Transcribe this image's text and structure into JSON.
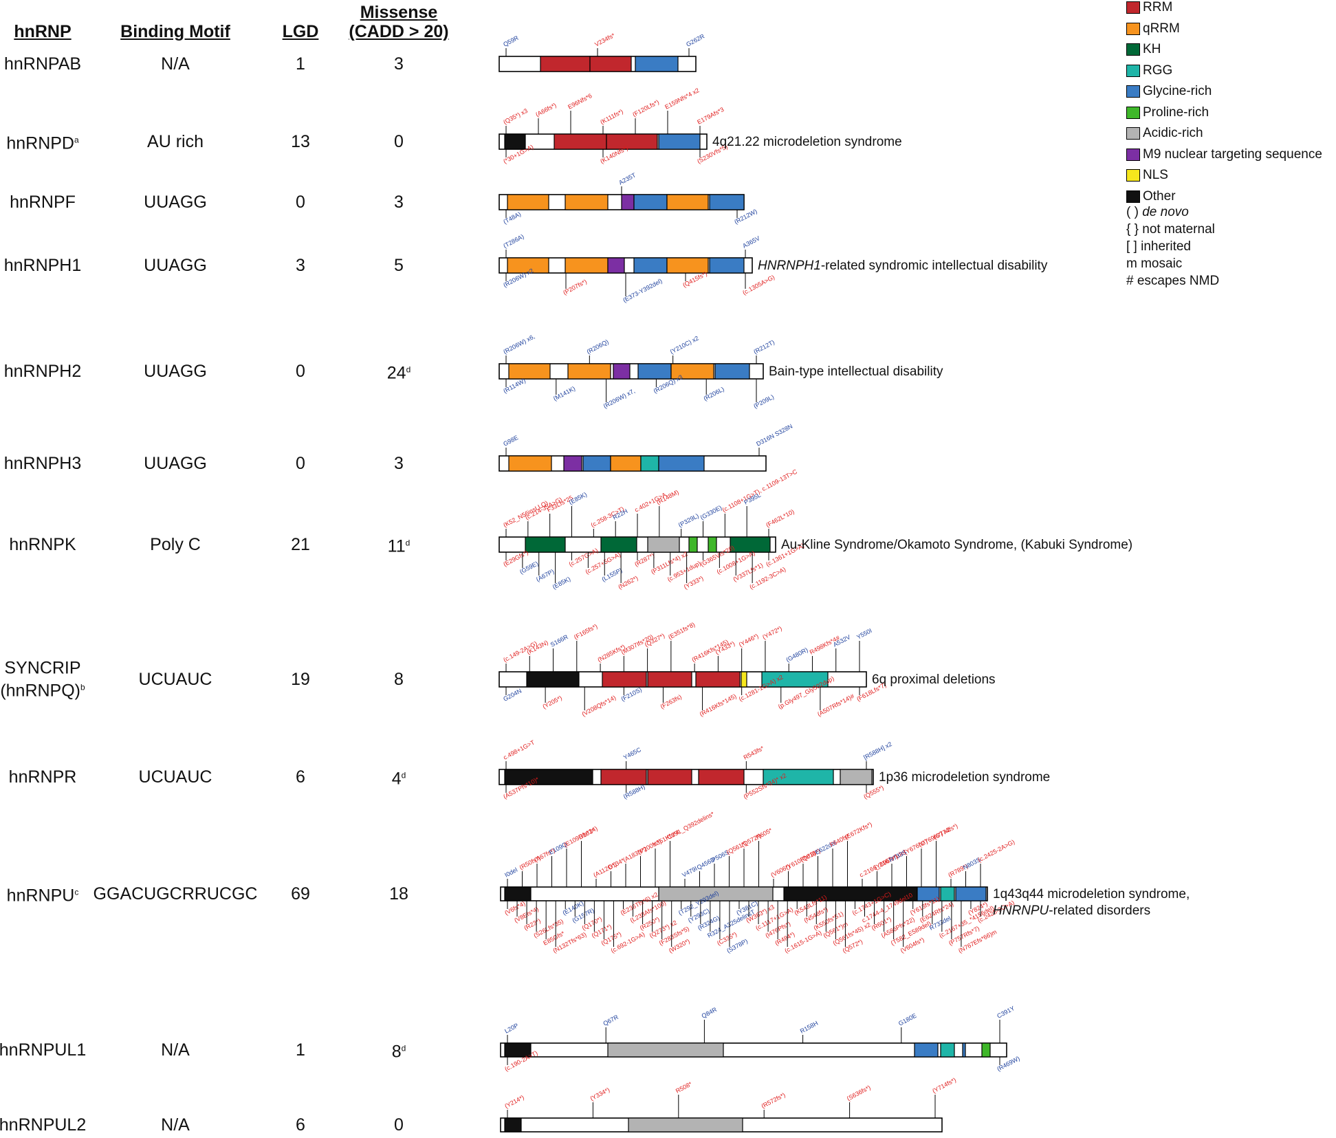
{
  "headers": {
    "hnrnp": "hnRNP",
    "motif": "Binding Motif",
    "lgd": "LGD",
    "missense_1": "Missense",
    "missense_2": "(CADD > 20)"
  },
  "colors": {
    "RRM": "#c1272d",
    "qRRM": "#f7931e",
    "KH": "#006837",
    "RGG": "#1fb5a8",
    "Glycine": "#3a7cc4",
    "Proline": "#3fb72a",
    "Acidic": "#b3b3b3",
    "M9": "#7c2fa3",
    "NLS": "#f6e71d",
    "Other": "#111111",
    "mutation_red": "#e01b1b",
    "mutation_blue": "#1c3f9c"
  },
  "legend": [
    {
      "label": "RRM",
      "color": "#c1272d"
    },
    {
      "label": "qRRM",
      "color": "#f7931e"
    },
    {
      "label": "KH",
      "color": "#006837"
    },
    {
      "label": "RGG",
      "color": "#1fb5a8"
    },
    {
      "label": "Glycine-rich",
      "color": "#3a7cc4"
    },
    {
      "label": "Proline-rich",
      "color": "#3fb72a"
    },
    {
      "label": "Acidic-rich",
      "color": "#b3b3b3"
    },
    {
      "label": "M9 nuclear targeting sequence",
      "color": "#7c2fa3"
    },
    {
      "label": "NLS",
      "color": "#f6e71d"
    },
    {
      "label": "Other",
      "color": "#111111"
    }
  ],
  "legend_notes": [
    "( ) de novo",
    "{ } not maternal",
    "[ ] inherited",
    "m mosaic",
    "# escapes NMD"
  ],
  "rows": [
    {
      "name": "hnRNPAB",
      "sup": "",
      "motif": "N/A",
      "lgd": "1",
      "missense": "3",
      "msup": "",
      "syndrome": ""
    },
    {
      "name": "hnRNPD",
      "sup": "a",
      "motif": "AU rich",
      "lgd": "13",
      "missense": "0",
      "msup": "",
      "syndrome": "4q21.22 microdeletion syndrome"
    },
    {
      "name": "hnRNPF",
      "sup": "",
      "motif": "UUAGG",
      "lgd": "0",
      "missense": "3",
      "msup": "",
      "syndrome": ""
    },
    {
      "name": "hnRNPH1",
      "sup": "",
      "motif": "UUAGG",
      "lgd": "3",
      "missense": "5",
      "msup": "",
      "syndrome": "HNRNPH1-related syndromic intellectual disability"
    },
    {
      "name": "hnRNPH2",
      "sup": "",
      "motif": "UUAGG",
      "lgd": "0",
      "missense": "24",
      "msup": "d",
      "syndrome": "Bain-type intellectual disability"
    },
    {
      "name": "hnRNPH3",
      "sup": "",
      "motif": "UUAGG",
      "lgd": "0",
      "missense": "3",
      "msup": "",
      "syndrome": ""
    },
    {
      "name": "hnRNPK",
      "sup": "",
      "motif": "Poly C",
      "lgd": "21",
      "missense": "11",
      "msup": "d",
      "syndrome": "Au-Kline Syndrome/Okamoto Syndrome, (Kabuki Syndrome)"
    },
    {
      "name": "SYNCRIP",
      "name2": "(hnRNPQ)",
      "sup": "b",
      "motif": "UCUAUC",
      "lgd": "19",
      "missense": "8",
      "msup": "",
      "syndrome": "6q proximal deletions"
    },
    {
      "name": "hnRNPR",
      "sup": "",
      "motif": "UCUAUC",
      "lgd": "6",
      "missense": "4",
      "msup": "d",
      "syndrome": "1p36 microdeletion syndrome"
    },
    {
      "name": "hnRNPU",
      "sup": "c",
      "motif": "GGACUGCRRUCGC",
      "lgd": "69",
      "missense": "18",
      "msup": "",
      "syndrome": "1q43q44 microdeletion syndrome,",
      "syndrome2": "HNRNPU-related disorders"
    },
    {
      "name": "hnRNPUL1",
      "sup": "",
      "motif": "N/A",
      "lgd": "1",
      "missense": "8",
      "msup": "d",
      "syndrome": ""
    },
    {
      "name": "hnRNPUL2",
      "sup": "",
      "motif": "N/A",
      "lgd": "6",
      "missense": "0",
      "msup": "",
      "syndrome": ""
    }
  ],
  "proteins": [
    {
      "domains": [
        [
          "RRM"
        ],
        [
          "RRM"
        ],
        [
          "Glycine"
        ]
      ],
      "above": [
        [
          "Q59R",
          "b"
        ],
        [
          "V234fs*",
          "r"
        ],
        [
          "G262R",
          "b"
        ]
      ],
      "below": []
    },
    {
      "domains": [
        [
          "Other"
        ],
        [
          "RRM"
        ],
        [
          "RRM"
        ],
        [
          "Glycine"
        ]
      ],
      "above": [
        [
          "(Q35*) x3",
          "r"
        ],
        [
          "(A66fs*)",
          "r"
        ],
        [
          "E96Nfs*6",
          "r"
        ],
        [
          "(K111fs*)",
          "r"
        ],
        [
          "(F120Lfs*)",
          "r"
        ],
        [
          "E159Nfs*4 x2",
          "r"
        ],
        [
          "E179Afs*3",
          "r"
        ]
      ],
      "below": [
        [
          "(*30+1G>A)",
          "r"
        ],
        [
          "(K140Nfs*)",
          "r"
        ],
        [
          "(S230Vfs*5)",
          "r"
        ]
      ]
    },
    {
      "domains": [
        [
          "qRRM"
        ],
        [
          "qRRM"
        ],
        [
          "M9"
        ],
        [
          "Glycine"
        ],
        [
          "qRRM"
        ],
        [
          "Glycine"
        ]
      ],
      "above": [
        [
          "A235T",
          "b"
        ]
      ],
      "below": [
        [
          "(T48A)",
          "b"
        ],
        [
          "(R212W)",
          "b"
        ]
      ]
    },
    {
      "domains": [
        [
          "qRRM"
        ],
        [
          "qRRM"
        ],
        [
          "M9"
        ],
        [
          "Glycine"
        ],
        [
          "qRRM"
        ],
        [
          "Glycine"
        ]
      ],
      "above": [
        [
          "(T286A)",
          "b"
        ],
        [
          "A365V",
          "b"
        ]
      ],
      "below": [
        [
          "(R206W) x2",
          "b"
        ],
        [
          "(P207fs*)",
          "r"
        ],
        [
          "(E373-Y392del)",
          "b"
        ],
        [
          "(Q415fs*)",
          "r"
        ],
        [
          "(c.1305A>G)",
          "r"
        ]
      ]
    },
    {
      "domains": [
        [
          "qRRM"
        ],
        [
          "qRRM"
        ],
        [
          "M9"
        ],
        [
          "Glycine"
        ],
        [
          "qRRM"
        ],
        [
          "Glycine"
        ]
      ],
      "above": [
        [
          "(R206W) x6,",
          "b"
        ],
        [
          "(R206Q)",
          "b"
        ],
        [
          "(Y210C) x2",
          "b"
        ],
        [
          "(R212T)",
          "b"
        ]
      ],
      "below": [
        [
          "(R114W)",
          "b"
        ],
        [
          "(M141K)",
          "b"
        ],
        [
          "(R206W) x7,",
          "b"
        ],
        [
          "(R206Q) x3",
          "b"
        ],
        [
          "(R206L)",
          "b"
        ],
        [
          "(P209L)",
          "b"
        ]
      ]
    },
    {
      "domains": [
        [
          "qRRM"
        ],
        [
          "M9"
        ],
        [
          "Glycine"
        ],
        [
          "qRRM"
        ],
        [
          "RGG"
        ],
        [
          "Glycine"
        ]
      ],
      "above": [
        [
          "G98E",
          "b"
        ],
        [
          "D316N S328N",
          "b"
        ]
      ],
      "below": []
    },
    {
      "domains": [
        [
          "KH"
        ],
        [
          "KH"
        ],
        [
          "Acidic"
        ],
        [
          "Proline"
        ],
        [
          "Proline"
        ],
        [
          "KH"
        ]
      ],
      "above": [
        [
          "(K52_N56insLLQ)",
          "r"
        ],
        [
          "(c.214-35A>G)",
          "r"
        ],
        [
          "F33Lfs*25",
          "r"
        ],
        [
          "(E85K)",
          "b"
        ],
        [
          "(c.258-3C>T)",
          "r"
        ],
        [
          "R22H",
          "b"
        ],
        [
          "c.402+1G>A",
          "r"
        ],
        [
          "(R148M)",
          "r"
        ],
        [
          "(P329L)",
          "b"
        ],
        [
          "(G330E)",
          "b"
        ],
        [
          "(c.1108+1G>T), c.1109-13T>C",
          "r"
        ],
        [
          "P395L",
          "b"
        ],
        [
          "(F462L*10)",
          "r"
        ]
      ],
      "below": [
        [
          "(E29Gfs*)",
          "r"
        ],
        [
          "(G59E)",
          "b"
        ],
        [
          "(A67P)",
          "b"
        ],
        [
          "(E85K)",
          "b"
        ],
        [
          "(c.257G>A)",
          "r"
        ],
        [
          "(c.257+5G>A)",
          "r"
        ],
        [
          "(L155P)",
          "b"
        ],
        [
          "(N262*)",
          "r"
        ],
        [
          "(R287*)",
          "r"
        ],
        [
          "(P311Lfs*4) x2",
          "r"
        ],
        [
          "(c.953+1dup)",
          "r"
        ],
        [
          "(Y333*)",
          "r"
        ],
        [
          "(G365Vfs*28)",
          "r"
        ],
        [
          "(c.1008+1G>A)",
          "r"
        ],
        [
          "(V337Lfs*1)",
          "r"
        ],
        [
          "(c.1192-3C>A)",
          "r"
        ],
        [
          "(c.1361+1G>A)",
          "r"
        ]
      ]
    },
    {
      "domains": [
        [
          "Other"
        ],
        [
          "RRM"
        ],
        [
          "RRM"
        ],
        [
          "RRM"
        ],
        [
          "NLS"
        ],
        [
          "RGG"
        ]
      ],
      "above": [
        [
          "(c.149-2A>G)",
          "r"
        ],
        [
          "(K143N)",
          "r"
        ],
        [
          "S166R",
          "b"
        ],
        [
          "(F165fs*)",
          "r"
        ],
        [
          "(N285Kfs*)",
          "r"
        ],
        [
          "(M307Ifs*20)",
          "r"
        ],
        [
          "(Q327*)",
          "r"
        ],
        [
          "(E351fs*8)",
          "r"
        ],
        [
          "(R416Kfs*145)",
          "r"
        ],
        [
          "(Y433*)",
          "r"
        ],
        [
          "(Y446*)",
          "r"
        ],
        [
          "(Y472*)",
          "r"
        ],
        [
          "(G480R)",
          "b"
        ],
        [
          "R498Kfs*4#",
          "r"
        ],
        [
          "A532V",
          "b"
        ],
        [
          "Y550I",
          "b"
        ]
      ],
      "below": [
        [
          "G204N",
          "b"
        ],
        [
          "(Y205*)",
          "r"
        ],
        [
          "(V208Qfs*14)",
          "r"
        ],
        [
          "(F210S)",
          "b"
        ],
        [
          "(F263fs)",
          "r"
        ],
        [
          "(R416Kfs*145)",
          "r"
        ],
        [
          "(c.1281-1G>A) x2",
          "r"
        ],
        [
          "(p.Gly497_Gly502dup)",
          "r"
        ],
        [
          "(A507Rfs*14)#",
          "r"
        ],
        [
          "(F618Lfs*7)",
          "r"
        ]
      ]
    },
    {
      "domains": [
        [
          "Other"
        ],
        [
          "RRM"
        ],
        [
          "RRM"
        ],
        [
          "RRM"
        ],
        [
          "RGG"
        ],
        [
          "Acidic"
        ]
      ],
      "above": [
        [
          "c.498+1G>T",
          "r"
        ],
        [
          "Y465C",
          "b"
        ],
        [
          "R543fs*",
          "r"
        ],
        [
          "[R588H] x2",
          "b"
        ]
      ],
      "below": [
        [
          "(A537Pfs*10)*",
          "r"
        ],
        [
          "(R588H)",
          "b"
        ],
        [
          "(P552Sfs*34)* x2",
          "r"
        ],
        [
          "(Q555*)",
          "r"
        ]
      ]
    },
    {
      "domains": [
        [
          "Other"
        ],
        [
          "Acidic"
        ],
        [
          "Other"
        ],
        [
          "Glycine"
        ],
        [
          "RGG"
        ],
        [
          "Glycine"
        ]
      ],
      "above": [
        [
          "I0del",
          "b"
        ],
        [
          "(R50fs*)",
          "r"
        ],
        [
          "(A67fs*)",
          "r"
        ],
        [
          "E109Q",
          "b"
        ],
        [
          "(E109Rfs*34)",
          "r"
        ],
        [
          "D161*",
          "r"
        ],
        [
          "(A112G*)",
          "r"
        ],
        [
          "D134*",
          "r"
        ],
        [
          "(A183fs*)",
          "r"
        ],
        [
          "(P200fs*)",
          "r"
        ],
        [
          "Y351Kfs*4",
          "r"
        ],
        [
          "C391_Q392delins*",
          "r"
        ],
        [
          "V479I",
          "b"
        ],
        [
          "Q456D",
          "b"
        ],
        [
          "P506S",
          "b"
        ],
        [
          "(Q561*)",
          "r"
        ],
        [
          "(Q572*)",
          "r"
        ],
        [
          "R605*",
          "r"
        ],
        [
          "(V606*)",
          "r"
        ],
        [
          "(Y610Ffs*3)",
          "r"
        ],
        [
          "(Q618*)",
          "r"
        ],
        [
          "E622del",
          "b"
        ],
        [
          "F640fs*",
          "r"
        ],
        [
          "(E672Kfs*)",
          "r"
        ],
        [
          "c.2166_2167+1del",
          "r"
        ],
        [
          "(Y696fs*)",
          "r"
        ],
        [
          "R733S",
          "b"
        ],
        [
          "(Y676fs*)",
          "r"
        ],
        [
          "(G769fs*) x2",
          "r"
        ],
        [
          "(G774fs*)",
          "r"
        ],
        [
          "(R789*)",
          "r"
        ],
        [
          "N803S",
          "b"
        ],
        [
          "(c.2425-2A>G)",
          "r"
        ]
      ],
      "below": [
        [
          "(V6fs*4)",
          "r"
        ],
        [
          "(V8Efs*4)",
          "r"
        ],
        [
          "(R23*)",
          "r"
        ],
        [
          "(S26Lfs*35)",
          "r"
        ],
        [
          "E85Gfs*",
          "r"
        ],
        [
          "(N132Tfs*63)",
          "r"
        ],
        [
          "(E140K)",
          "b"
        ],
        [
          "(G157R)",
          "b"
        ],
        [
          "(Q170*)",
          "r"
        ],
        [
          "(Q171*)",
          "r"
        ],
        [
          "(Q175*)",
          "r"
        ],
        [
          "(c.692-1G>A)",
          "r"
        ],
        [
          "(E236Tfs*6) x2",
          "r"
        ],
        [
          "(L238Afs*100)",
          "r"
        ],
        [
          "(R250*)",
          "r"
        ],
        [
          "(Q273*) x2",
          "r"
        ],
        [
          "(F283Sfs*5)",
          "r"
        ],
        [
          "(W320*)",
          "r"
        ],
        [
          "(T292_Y293del)",
          "b"
        ],
        [
          "(Y293C)",
          "b"
        ],
        [
          "(R324G)",
          "b"
        ],
        [
          "R324_A325delinsT",
          "b"
        ],
        [
          "(C335*)",
          "r"
        ],
        [
          "(S378P)",
          "b"
        ],
        [
          "(Y381C)",
          "b"
        ],
        [
          "(W363*) x3",
          "r"
        ],
        [
          "(c.1117+1G>A)",
          "r"
        ],
        [
          "(I476Pfs*)",
          "r"
        ],
        [
          "(R484*)",
          "r"
        ],
        [
          "(c.1615-1G>A)",
          "r"
        ],
        [
          "(K543Lfs*11)",
          "r"
        ],
        [
          "(N548fs*)",
          "r"
        ],
        [
          "(K550fs*51)",
          "r"
        ],
        [
          "(Q561*)m",
          "r"
        ],
        [
          "(Q561fs*45) x2",
          "r"
        ],
        [
          "(Q572*)",
          "r"
        ],
        [
          "(c.1743+1G>C)",
          "r"
        ],
        [
          "c.1744-4_1749del10",
          "r"
        ],
        [
          "(R601*)",
          "r"
        ],
        [
          "(A586Pfs*22)",
          "r"
        ],
        [
          "(T582_E589del)",
          "r"
        ],
        [
          "(V604fs*)",
          "r"
        ],
        [
          "(Y613fs*11)",
          "r"
        ],
        [
          "(E624Rfs*24)",
          "r"
        ],
        [
          "R733del",
          "b"
        ],
        [
          "(c.2167+35_*4156del)",
          "r"
        ],
        [
          "(P757Rfs*7)",
          "r"
        ],
        [
          "(N767Efs*66)m",
          "r"
        ],
        [
          "(Y824*)",
          "r"
        ],
        [
          "(c.2425-3C>A)",
          "r"
        ]
      ]
    },
    {
      "domains": [
        [
          "Other"
        ],
        [
          "Acidic"
        ],
        [
          "Glycine"
        ],
        [
          "RGG"
        ],
        [
          "Glycine"
        ],
        [
          "Proline"
        ]
      ],
      "above": [
        [
          "L20P",
          "b"
        ],
        [
          "Q67R",
          "b"
        ],
        [
          "Q84R",
          "b"
        ],
        [
          "R158H",
          "b"
        ],
        [
          "G180E",
          "b"
        ],
        [
          "C391Y",
          "b"
        ]
      ],
      "below": [
        [
          "(c.190-2A>T)",
          "r"
        ],
        [
          "(R469W)",
          "b"
        ]
      ]
    },
    {
      "domains": [
        [
          "Other"
        ],
        [
          "Acidic"
        ]
      ],
      "above": [
        [
          "(Y214*)",
          "r"
        ],
        [
          "(Y334*)",
          "r"
        ],
        [
          "R508*",
          "r"
        ],
        [
          "(R572fs*)",
          "r"
        ],
        [
          "(S636fs*)",
          "r"
        ],
        [
          "(Y714fs*)",
          "r"
        ]
      ],
      "below": []
    }
  ]
}
